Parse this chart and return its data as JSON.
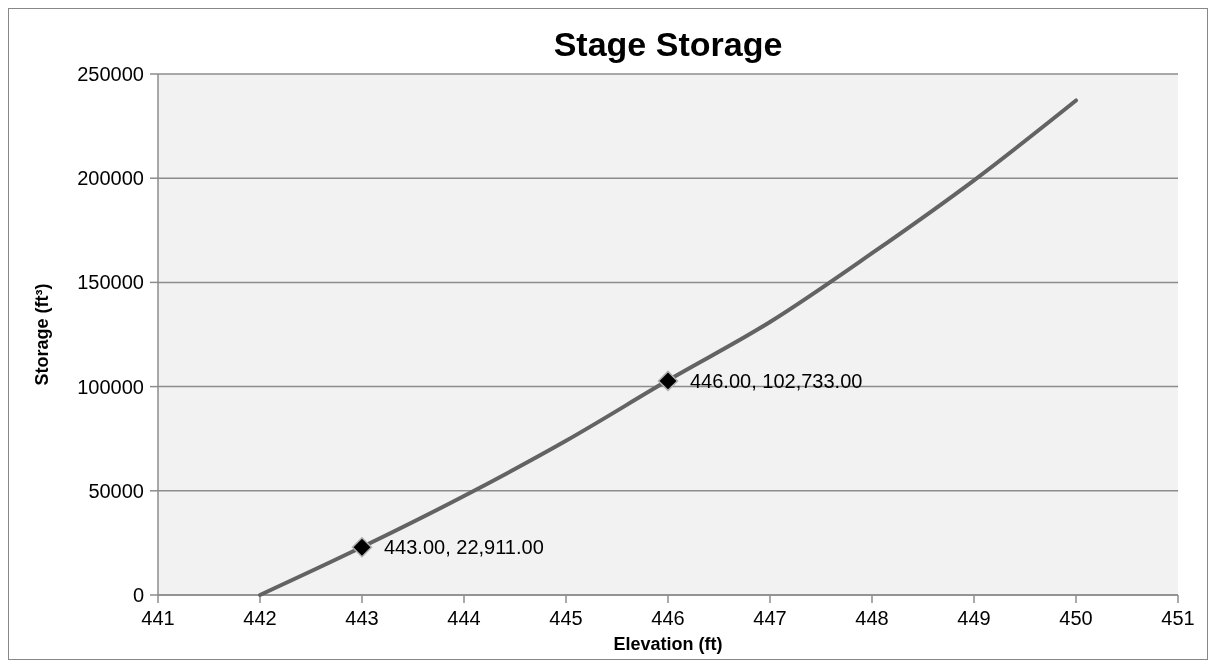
{
  "chart_data": {
    "type": "line",
    "title": "Stage Storage",
    "xlabel": "Elevation (ft)",
    "ylabel": "Storage (ft³)",
    "xlim": [
      441,
      451
    ],
    "xticks": [
      441,
      442,
      443,
      444,
      445,
      446,
      447,
      448,
      449,
      450,
      451
    ],
    "ylim": [
      0,
      250000
    ],
    "yticks": [
      0,
      50000,
      100000,
      150000,
      200000,
      250000
    ],
    "grid": "y",
    "series": [
      {
        "color": "#636363",
        "x": [
          442,
          443,
          444,
          445,
          446,
          447,
          448,
          449,
          450
        ],
        "values": [
          0,
          23000,
          47500,
          74000,
          103000,
          131000,
          164000,
          199000,
          237300
        ],
        "marker": "none"
      },
      {
        "type": "scatter",
        "color": "#000000",
        "x": [
          443,
          446
        ],
        "values": [
          22911,
          102733
        ],
        "marker": "diamond",
        "value_labels": [
          "443.00, 22,911.00",
          "446.00, 102,733.00"
        ]
      }
    ]
  }
}
